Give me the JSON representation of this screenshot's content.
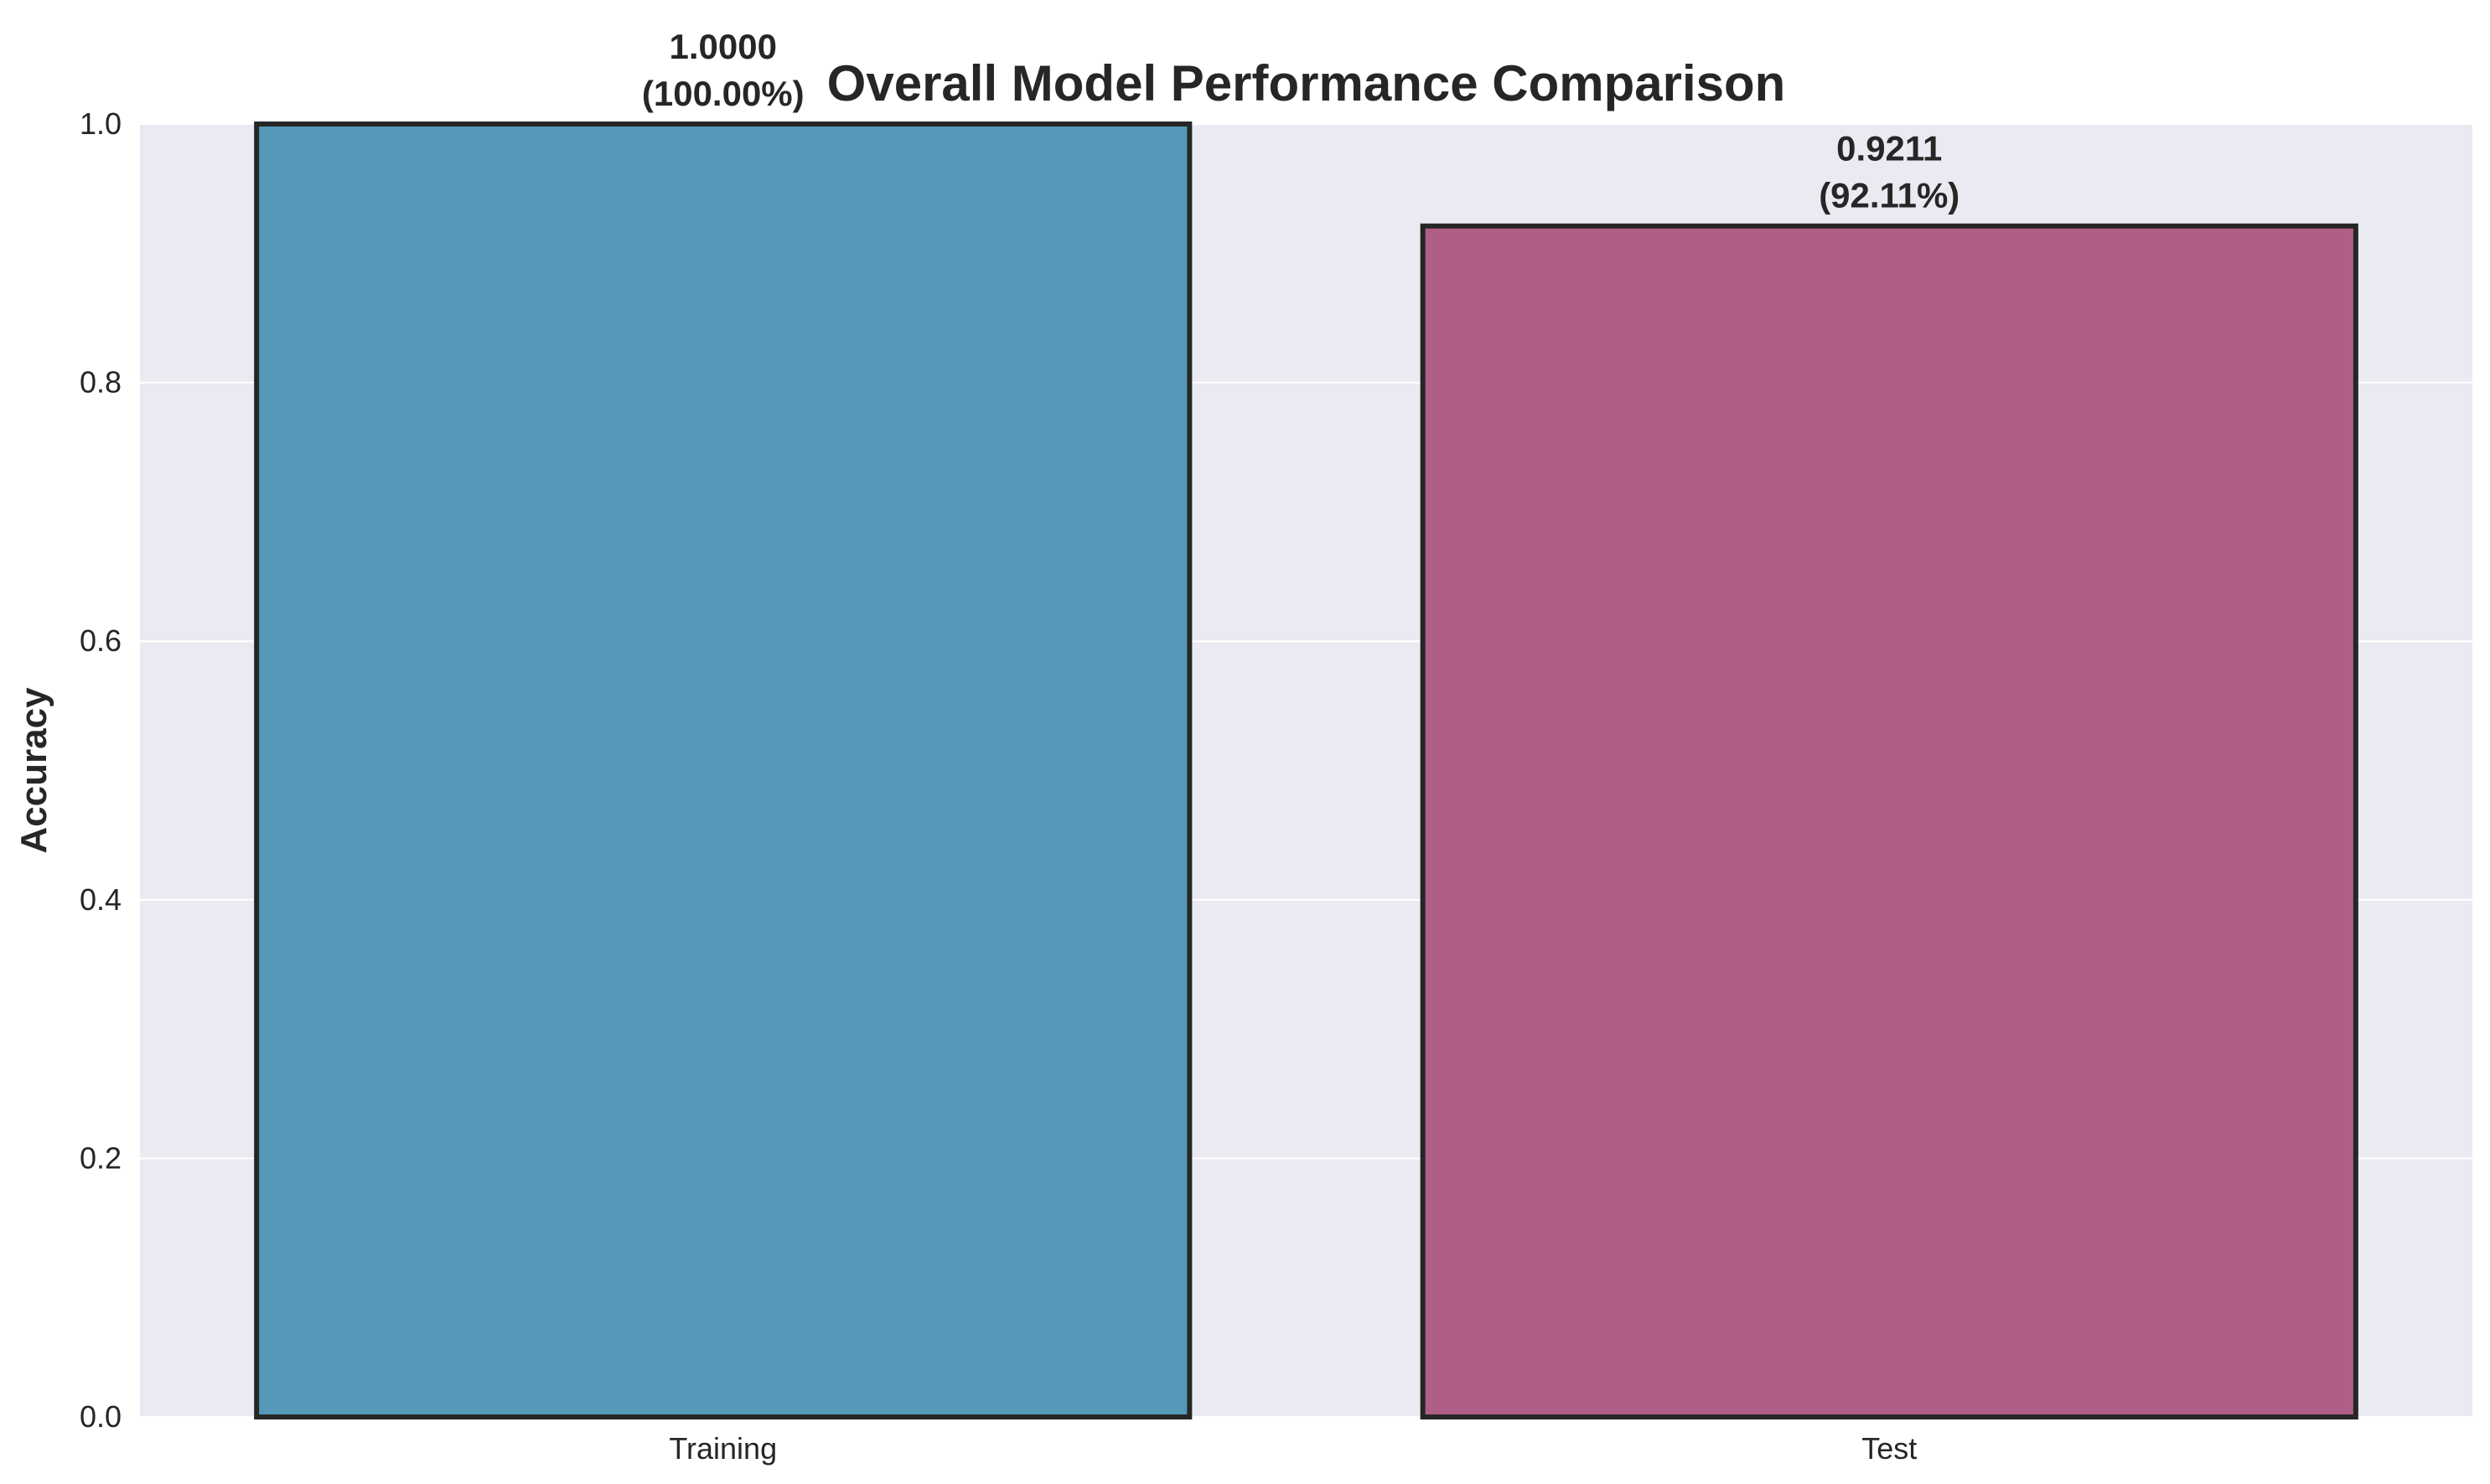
{
  "chart_data": {
    "type": "bar",
    "title": "Overall Model Performance Comparison",
    "xlabel": "",
    "ylabel": "Accuracy",
    "categories": [
      "Training",
      "Test"
    ],
    "values": [
      1.0,
      0.9211
    ],
    "value_labels": [
      "1.0000",
      "0.9211"
    ],
    "percent_labels": [
      "(100.00%)",
      "(92.11%)"
    ],
    "ylim": [
      0,
      1.0
    ],
    "yticks": [
      "0.0",
      "0.2",
      "0.4",
      "0.6",
      "0.8",
      "1.0"
    ],
    "ytick_values": [
      0.0,
      0.2,
      0.4,
      0.6,
      0.8,
      1.0
    ],
    "grid": true,
    "colors": {
      "bars": [
        "#5599b9",
        "#b05e88"
      ],
      "bar_edge": "#262626",
      "plot_background": "#eaeaf2",
      "grid": "#ffffff"
    }
  }
}
